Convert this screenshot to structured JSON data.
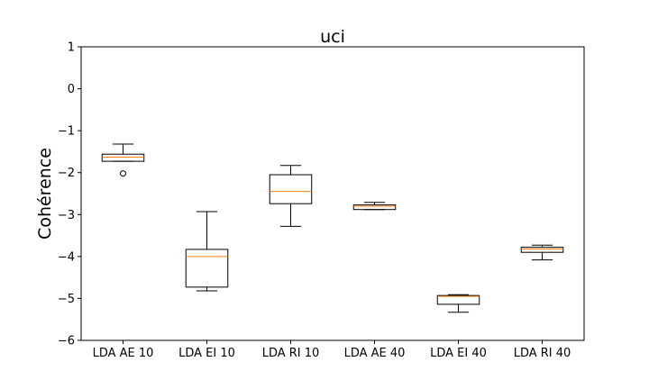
{
  "chart_data": {
    "type": "box",
    "title": "uci",
    "xlabel": "",
    "ylabel": "Cohérence",
    "ylim": [
      -6,
      1
    ],
    "yticks": [
      "1",
      "0",
      "−1",
      "−2",
      "−3",
      "−4",
      "−5",
      "−6"
    ],
    "ytick_values": [
      1,
      0,
      -1,
      -2,
      -3,
      -4,
      -5,
      -6
    ],
    "grid": false,
    "median_color": "#ff7f0e",
    "box_color": "#000000",
    "categories": [
      "LDA AE 10",
      "LDA EI 10",
      "LDA RI 10",
      "LDA AE 40",
      "LDA EI 40",
      "LDA RI 40"
    ],
    "boxes": [
      {
        "whisker_low": -1.73,
        "q1": -1.73,
        "median": -1.63,
        "q3": -1.56,
        "whisker_high": -1.32,
        "outliers": [
          -2.02
        ]
      },
      {
        "whisker_low": -4.82,
        "q1": -4.73,
        "median": -4.0,
        "q3": -3.83,
        "whisker_high": -2.93,
        "outliers": []
      },
      {
        "whisker_low": -3.28,
        "q1": -2.74,
        "median": -2.45,
        "q3": -2.05,
        "whisker_high": -1.83,
        "outliers": []
      },
      {
        "whisker_low": -2.88,
        "q1": -2.88,
        "median": -2.8,
        "q3": -2.77,
        "whisker_high": -2.71,
        "outliers": []
      },
      {
        "whisker_low": -5.33,
        "q1": -5.14,
        "median": -4.95,
        "q3": -4.93,
        "whisker_high": -4.91,
        "outliers": []
      },
      {
        "whisker_low": -4.08,
        "q1": -3.9,
        "median": -3.82,
        "q3": -3.78,
        "whisker_high": -3.73,
        "outliers": []
      }
    ]
  }
}
